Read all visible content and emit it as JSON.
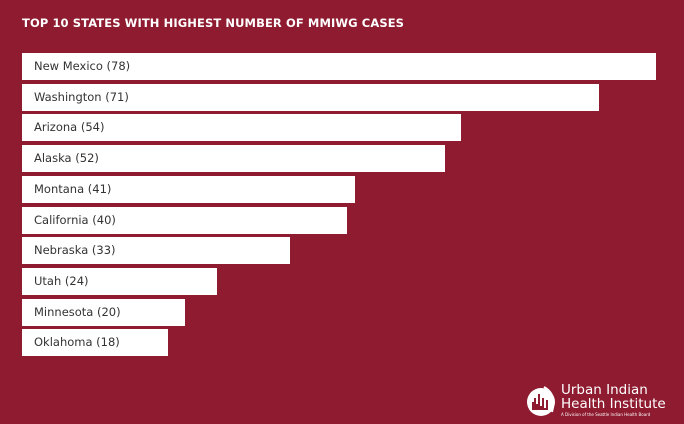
{
  "chart_data": {
    "type": "bar",
    "orientation": "horizontal",
    "title": "TOP 10 STATES WITH HIGHEST NUMBER OF MMIWG CASES",
    "categories": [
      "New Mexico",
      "Washington",
      "Arizona",
      "Alaska",
      "Montana",
      "California",
      "Nebraska",
      "Utah",
      "Minnesota",
      "Oklahoma"
    ],
    "values": [
      78,
      71,
      54,
      52,
      41,
      40,
      33,
      24,
      20,
      18
    ],
    "labels": [
      "New Mexico (78)",
      "Washington (71)",
      "Arizona (54)",
      "Alaska (52)",
      "Montana (41)",
      "California (40)",
      "Nebraska (33)",
      "Utah (24)",
      "Minnesota (20)",
      "Oklahoma (18)"
    ],
    "xlim": [
      0,
      78
    ],
    "grid": false,
    "colors": {
      "background": "#8e1b2f",
      "bar": "#ffffff",
      "label": "#333333"
    }
  },
  "logo": {
    "line1": "Urban Indian",
    "line2": "Health Institute",
    "tagline": "A Division of the Seattle Indian Health Board"
  }
}
